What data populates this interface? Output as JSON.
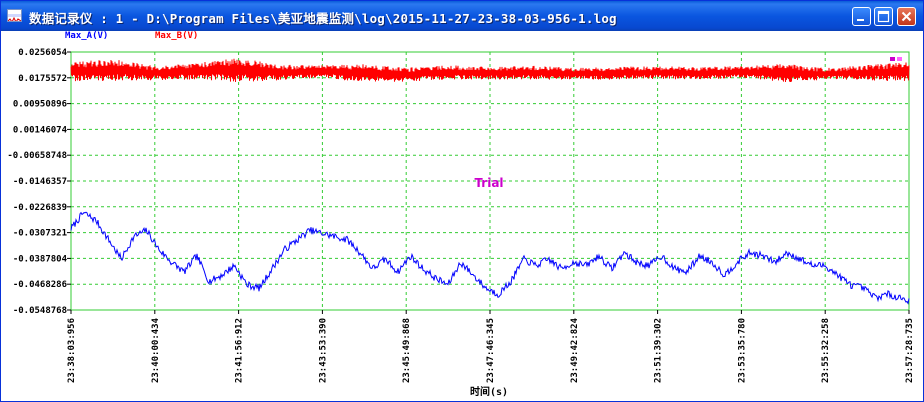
{
  "window": {
    "title": "数据记录仪 : 1 - D:\\Program Files\\美亚地震监测\\log\\2015-11-27-23-38-03-956-1.log",
    "minimize_label": "minimize",
    "maximize_label": "maximize",
    "close_label": "close"
  },
  "watermark": "Trial",
  "colors": {
    "grid": "#33cc33",
    "series_a": "#0000ff",
    "series_b": "#ff0000",
    "watermark": "#cc00cc",
    "titlebar": "#0a56e0"
  },
  "chart_data": {
    "type": "line",
    "title": "",
    "xlabel": "时间(s)",
    "ylabel": "",
    "legend_position": "top-left",
    "grid": true,
    "y_ticks": [
      "0.0256054",
      "0.0175572",
      "0.00950896",
      "0.00146074",
      "-0.00658748",
      "-0.0146357",
      "-0.0226839",
      "-0.0307321",
      "-0.0387804",
      "-0.0468286",
      "-0.0548768"
    ],
    "ylim": [
      -0.0548768,
      0.0256054
    ],
    "x_ticks": [
      "23:38:03:956",
      "23:40:00:434",
      "23:41:56:912",
      "23:43:53:390",
      "23:45:49:868",
      "23:47:46:345",
      "23:49:42:824",
      "23:51:39:302",
      "23:53:35:780",
      "23:55:32:258",
      "23:57:28:735"
    ],
    "series": [
      {
        "name": "Max_A(V)",
        "color": "#0000ff",
        "x_tick_index": [
          0,
          0.15,
          0.3,
          0.45,
          0.6,
          0.75,
          0.9,
          1.05,
          1.2,
          1.35,
          1.5,
          1.65,
          1.8,
          1.95,
          2.1,
          2.25,
          2.4,
          2.55,
          2.7,
          2.85,
          3.0,
          3.15,
          3.3,
          3.45,
          3.6,
          3.75,
          3.9,
          4.05,
          4.2,
          4.35,
          4.5,
          4.65,
          4.8,
          4.95,
          5.1,
          5.25,
          5.4,
          5.55,
          5.7,
          5.85,
          6.0,
          6.15,
          6.3,
          6.45,
          6.6,
          6.75,
          6.9,
          7.05,
          7.2,
          7.35,
          7.5,
          7.65,
          7.8,
          7.95,
          8.1,
          8.25,
          8.4,
          8.55,
          8.7,
          8.85,
          9.0,
          9.15,
          9.3,
          9.45,
          9.6,
          9.75,
          9.9,
          10.0
        ],
        "values": [
          -0.0295,
          -0.0245,
          -0.027,
          -0.033,
          -0.039,
          -0.032,
          -0.03,
          -0.036,
          -0.04,
          -0.043,
          -0.038,
          -0.046,
          -0.044,
          -0.041,
          -0.047,
          -0.048,
          -0.042,
          -0.036,
          -0.033,
          -0.03,
          -0.031,
          -0.032,
          -0.033,
          -0.037,
          -0.042,
          -0.039,
          -0.043,
          -0.038,
          -0.042,
          -0.045,
          -0.047,
          -0.04,
          -0.044,
          -0.048,
          -0.05,
          -0.046,
          -0.039,
          -0.041,
          -0.039,
          -0.042,
          -0.04,
          -0.041,
          -0.038,
          -0.042,
          -0.037,
          -0.04,
          -0.041,
          -0.038,
          -0.042,
          -0.043,
          -0.038,
          -0.04,
          -0.044,
          -0.04,
          -0.037,
          -0.038,
          -0.04,
          -0.037,
          -0.039,
          -0.041,
          -0.041,
          -0.044,
          -0.047,
          -0.048,
          -0.051,
          -0.05,
          -0.051,
          -0.052
        ]
      },
      {
        "name": "Max_B(V)",
        "color": "#ff0000",
        "x_tick_index": [
          0,
          0.5,
          1,
          1.5,
          2,
          2.5,
          3,
          3.5,
          4,
          4.5,
          5,
          5.5,
          6,
          6.5,
          7,
          7.5,
          8,
          8.5,
          9,
          9.5,
          10
        ],
        "values": [
          0.0195,
          0.02,
          0.019,
          0.0196,
          0.02,
          0.0192,
          0.0195,
          0.019,
          0.0185,
          0.0193,
          0.019,
          0.0192,
          0.0188,
          0.019,
          0.0192,
          0.0189,
          0.0194,
          0.019,
          0.0188,
          0.0191,
          0.0195
        ],
        "amplitude_envelope": [
          0.003,
          0.0034,
          0.0022,
          0.0026,
          0.0038,
          0.0024,
          0.002,
          0.0028,
          0.0022,
          0.0022,
          0.002,
          0.0022,
          0.0018,
          0.002,
          0.002,
          0.002,
          0.0018,
          0.003,
          0.0018,
          0.0024,
          0.003
        ]
      }
    ]
  }
}
